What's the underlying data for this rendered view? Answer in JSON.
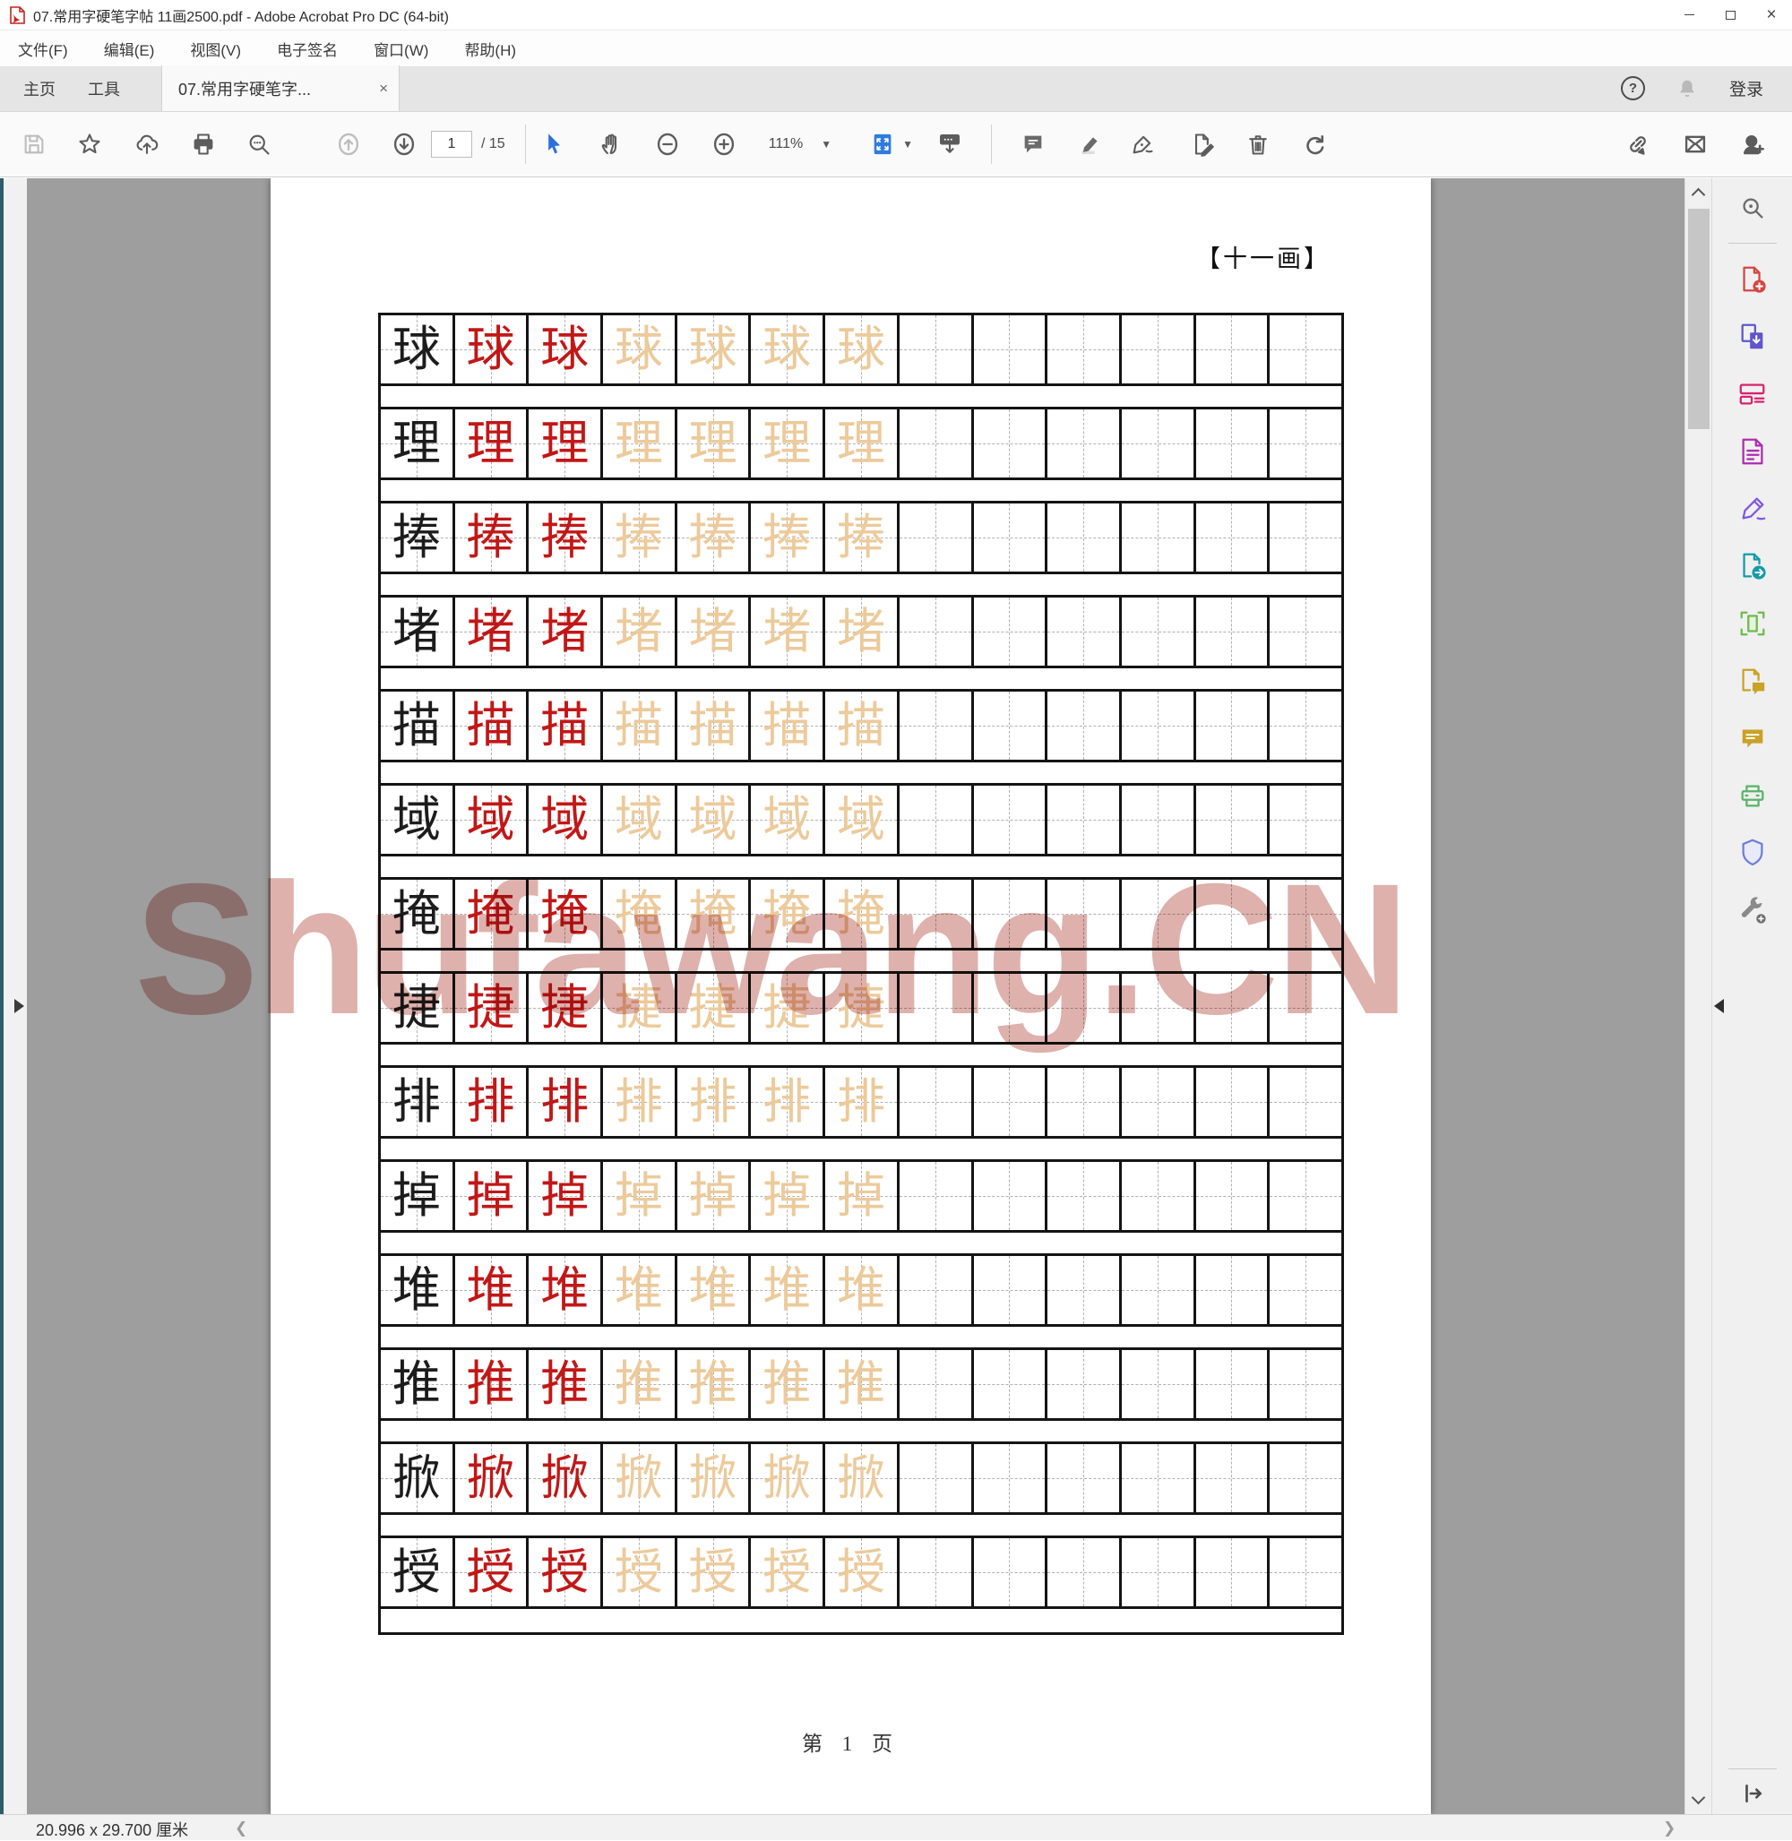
{
  "window": {
    "title": "07.常用字硬笔字帖 11画2500.pdf - Adobe Acrobat Pro DC (64-bit)"
  },
  "menu_bar": {
    "items": [
      "文件(F)",
      "编辑(E)",
      "视图(V)",
      "电子签名",
      "窗口(W)",
      "帮助(H)"
    ]
  },
  "tab_bar": {
    "home_label": "主页",
    "tools_label": "工具",
    "document_tab_label": "07.常用字硬笔字...",
    "close_glyph": "×",
    "help_glyph": "?",
    "login_label": "登录"
  },
  "toolbar": {
    "page_current": "1",
    "page_total": "/ 15",
    "zoom_level": "111%"
  },
  "document": {
    "header_label": "【十一画】",
    "watermark": "Shufawang.CN",
    "footer_label": "第 1 页",
    "grid": {
      "columns": 13,
      "black_count": 1,
      "red_count": 2,
      "trace_count": 4,
      "characters": [
        "球",
        "理",
        "捧",
        "堵",
        "描",
        "域",
        "掩",
        "捷",
        "排",
        "掉",
        "堆",
        "推",
        "掀",
        "授"
      ]
    },
    "grid_colors": {
      "black": "#1c1c1c",
      "red": "#c21717",
      "trace": "#ecca9b"
    }
  },
  "status_bar": {
    "page_size_label": "20.996 x 29.700 厘米"
  }
}
